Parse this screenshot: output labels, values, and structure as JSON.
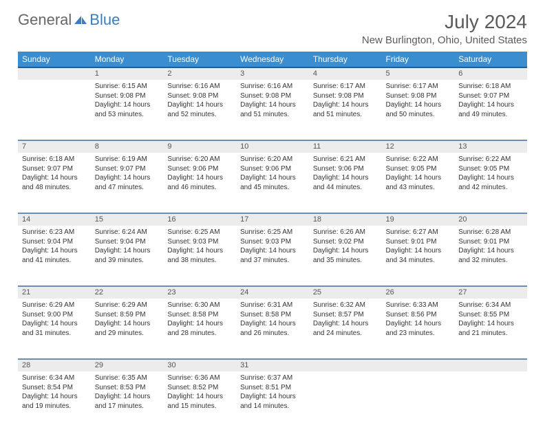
{
  "logo": {
    "text1": "General",
    "text2": "Blue"
  },
  "title": "July 2024",
  "location": "New Burlington, Ohio, United States",
  "headers": [
    "Sunday",
    "Monday",
    "Tuesday",
    "Wednesday",
    "Thursday",
    "Friday",
    "Saturday"
  ],
  "colors": {
    "header_bg": "#3a8dce",
    "header_text": "#ffffff",
    "daynum_bg": "#ececec",
    "daynum_border": "#6a8db5",
    "text": "#333333",
    "logo_gray": "#666666",
    "logo_blue": "#3a7ebf"
  },
  "weeks": [
    {
      "nums": [
        "",
        "1",
        "2",
        "3",
        "4",
        "5",
        "6"
      ],
      "cells": [
        null,
        {
          "sunrise": "Sunrise: 6:15 AM",
          "sunset": "Sunset: 9:08 PM",
          "day1": "Daylight: 14 hours",
          "day2": "and 53 minutes."
        },
        {
          "sunrise": "Sunrise: 6:16 AM",
          "sunset": "Sunset: 9:08 PM",
          "day1": "Daylight: 14 hours",
          "day2": "and 52 minutes."
        },
        {
          "sunrise": "Sunrise: 6:16 AM",
          "sunset": "Sunset: 9:08 PM",
          "day1": "Daylight: 14 hours",
          "day2": "and 51 minutes."
        },
        {
          "sunrise": "Sunrise: 6:17 AM",
          "sunset": "Sunset: 9:08 PM",
          "day1": "Daylight: 14 hours",
          "day2": "and 51 minutes."
        },
        {
          "sunrise": "Sunrise: 6:17 AM",
          "sunset": "Sunset: 9:08 PM",
          "day1": "Daylight: 14 hours",
          "day2": "and 50 minutes."
        },
        {
          "sunrise": "Sunrise: 6:18 AM",
          "sunset": "Sunset: 9:07 PM",
          "day1": "Daylight: 14 hours",
          "day2": "and 49 minutes."
        }
      ]
    },
    {
      "nums": [
        "7",
        "8",
        "9",
        "10",
        "11",
        "12",
        "13"
      ],
      "cells": [
        {
          "sunrise": "Sunrise: 6:18 AM",
          "sunset": "Sunset: 9:07 PM",
          "day1": "Daylight: 14 hours",
          "day2": "and 48 minutes."
        },
        {
          "sunrise": "Sunrise: 6:19 AM",
          "sunset": "Sunset: 9:07 PM",
          "day1": "Daylight: 14 hours",
          "day2": "and 47 minutes."
        },
        {
          "sunrise": "Sunrise: 6:20 AM",
          "sunset": "Sunset: 9:06 PM",
          "day1": "Daylight: 14 hours",
          "day2": "and 46 minutes."
        },
        {
          "sunrise": "Sunrise: 6:20 AM",
          "sunset": "Sunset: 9:06 PM",
          "day1": "Daylight: 14 hours",
          "day2": "and 45 minutes."
        },
        {
          "sunrise": "Sunrise: 6:21 AM",
          "sunset": "Sunset: 9:06 PM",
          "day1": "Daylight: 14 hours",
          "day2": "and 44 minutes."
        },
        {
          "sunrise": "Sunrise: 6:22 AM",
          "sunset": "Sunset: 9:05 PM",
          "day1": "Daylight: 14 hours",
          "day2": "and 43 minutes."
        },
        {
          "sunrise": "Sunrise: 6:22 AM",
          "sunset": "Sunset: 9:05 PM",
          "day1": "Daylight: 14 hours",
          "day2": "and 42 minutes."
        }
      ]
    },
    {
      "nums": [
        "14",
        "15",
        "16",
        "17",
        "18",
        "19",
        "20"
      ],
      "cells": [
        {
          "sunrise": "Sunrise: 6:23 AM",
          "sunset": "Sunset: 9:04 PM",
          "day1": "Daylight: 14 hours",
          "day2": "and 41 minutes."
        },
        {
          "sunrise": "Sunrise: 6:24 AM",
          "sunset": "Sunset: 9:04 PM",
          "day1": "Daylight: 14 hours",
          "day2": "and 39 minutes."
        },
        {
          "sunrise": "Sunrise: 6:25 AM",
          "sunset": "Sunset: 9:03 PM",
          "day1": "Daylight: 14 hours",
          "day2": "and 38 minutes."
        },
        {
          "sunrise": "Sunrise: 6:25 AM",
          "sunset": "Sunset: 9:03 PM",
          "day1": "Daylight: 14 hours",
          "day2": "and 37 minutes."
        },
        {
          "sunrise": "Sunrise: 6:26 AM",
          "sunset": "Sunset: 9:02 PM",
          "day1": "Daylight: 14 hours",
          "day2": "and 35 minutes."
        },
        {
          "sunrise": "Sunrise: 6:27 AM",
          "sunset": "Sunset: 9:01 PM",
          "day1": "Daylight: 14 hours",
          "day2": "and 34 minutes."
        },
        {
          "sunrise": "Sunrise: 6:28 AM",
          "sunset": "Sunset: 9:01 PM",
          "day1": "Daylight: 14 hours",
          "day2": "and 32 minutes."
        }
      ]
    },
    {
      "nums": [
        "21",
        "22",
        "23",
        "24",
        "25",
        "26",
        "27"
      ],
      "cells": [
        {
          "sunrise": "Sunrise: 6:29 AM",
          "sunset": "Sunset: 9:00 PM",
          "day1": "Daylight: 14 hours",
          "day2": "and 31 minutes."
        },
        {
          "sunrise": "Sunrise: 6:29 AM",
          "sunset": "Sunset: 8:59 PM",
          "day1": "Daylight: 14 hours",
          "day2": "and 29 minutes."
        },
        {
          "sunrise": "Sunrise: 6:30 AM",
          "sunset": "Sunset: 8:58 PM",
          "day1": "Daylight: 14 hours",
          "day2": "and 28 minutes."
        },
        {
          "sunrise": "Sunrise: 6:31 AM",
          "sunset": "Sunset: 8:58 PM",
          "day1": "Daylight: 14 hours",
          "day2": "and 26 minutes."
        },
        {
          "sunrise": "Sunrise: 6:32 AM",
          "sunset": "Sunset: 8:57 PM",
          "day1": "Daylight: 14 hours",
          "day2": "and 24 minutes."
        },
        {
          "sunrise": "Sunrise: 6:33 AM",
          "sunset": "Sunset: 8:56 PM",
          "day1": "Daylight: 14 hours",
          "day2": "and 23 minutes."
        },
        {
          "sunrise": "Sunrise: 6:34 AM",
          "sunset": "Sunset: 8:55 PM",
          "day1": "Daylight: 14 hours",
          "day2": "and 21 minutes."
        }
      ]
    },
    {
      "nums": [
        "28",
        "29",
        "30",
        "31",
        "",
        "",
        ""
      ],
      "cells": [
        {
          "sunrise": "Sunrise: 6:34 AM",
          "sunset": "Sunset: 8:54 PM",
          "day1": "Daylight: 14 hours",
          "day2": "and 19 minutes."
        },
        {
          "sunrise": "Sunrise: 6:35 AM",
          "sunset": "Sunset: 8:53 PM",
          "day1": "Daylight: 14 hours",
          "day2": "and 17 minutes."
        },
        {
          "sunrise": "Sunrise: 6:36 AM",
          "sunset": "Sunset: 8:52 PM",
          "day1": "Daylight: 14 hours",
          "day2": "and 15 minutes."
        },
        {
          "sunrise": "Sunrise: 6:37 AM",
          "sunset": "Sunset: 8:51 PM",
          "day1": "Daylight: 14 hours",
          "day2": "and 14 minutes."
        },
        null,
        null,
        null
      ]
    }
  ]
}
